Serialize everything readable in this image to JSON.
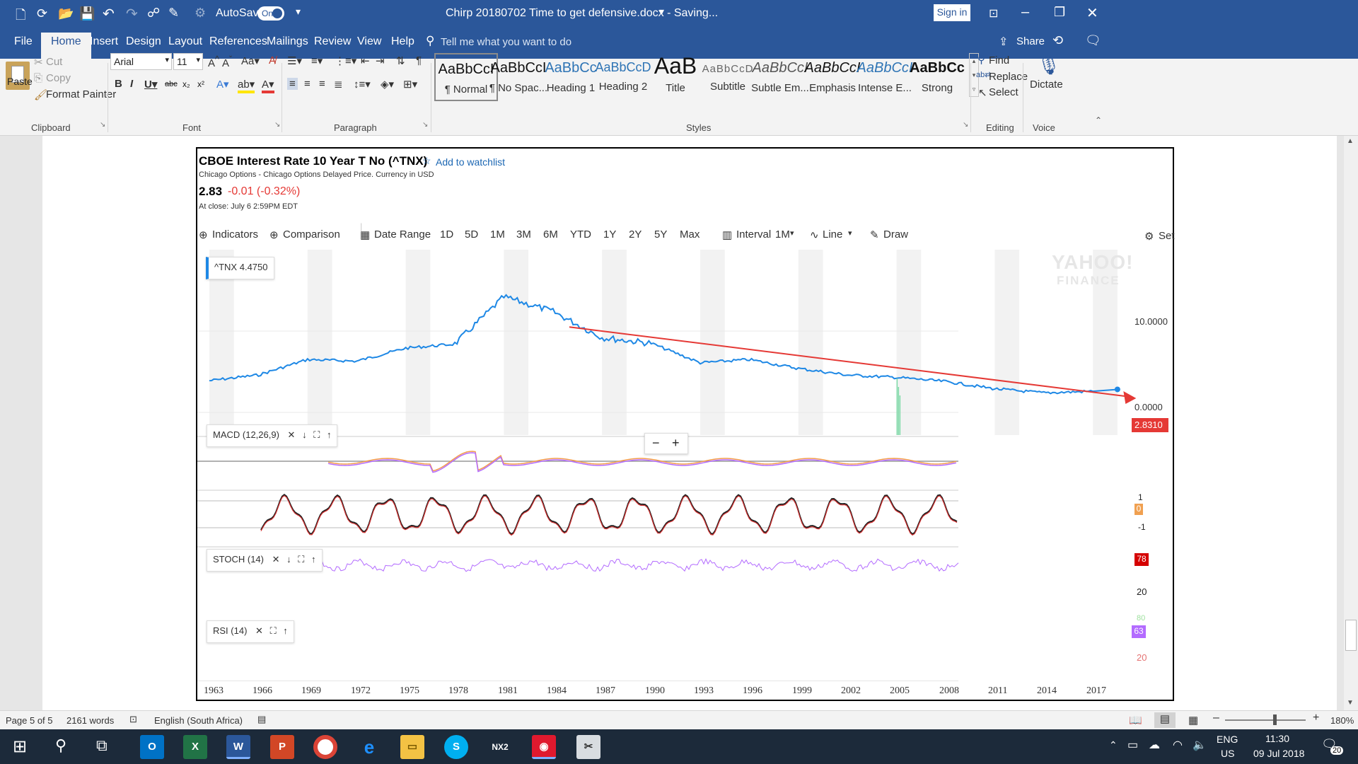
{
  "titlebar": {
    "autosave_label": "AutoSave",
    "autosave_state": "On",
    "doc_title": "Chirp 20180702 Time to get defensive.docx  -  Saving...",
    "sign_in": "Sign in"
  },
  "tabs": [
    "File",
    "Home",
    "Insert",
    "Design",
    "Layout",
    "References",
    "Mailings",
    "Review",
    "View",
    "Help"
  ],
  "tell_me": "Tell me what you want to do",
  "share": "Share",
  "clipboard": {
    "paste": "Paste",
    "cut": "Cut",
    "copy": "Copy",
    "format_painter": "Format Painter",
    "group": "Clipboard"
  },
  "font": {
    "name": "Arial",
    "size": "11",
    "group": "Font"
  },
  "paragraph": {
    "group": "Paragraph"
  },
  "styles": {
    "group": "Styles",
    "items": [
      {
        "sample": "AaBbCcI",
        "name": "¶ Normal"
      },
      {
        "sample": "AaBbCcI",
        "name": "¶ No Spac..."
      },
      {
        "sample": "AaBbCc",
        "name": "Heading 1"
      },
      {
        "sample": "AaBbCcD",
        "name": "Heading 2"
      },
      {
        "sample": "AaB",
        "name": "Title"
      },
      {
        "sample": "AaBbCcD",
        "name": "Subtitle"
      },
      {
        "sample": "AaBbCcI",
        "name": "Subtle Em..."
      },
      {
        "sample": "AaBbCcI",
        "name": "Emphasis"
      },
      {
        "sample": "AaBbCcI",
        "name": "Intense E..."
      },
      {
        "sample": "AaBbCc",
        "name": "Strong"
      }
    ]
  },
  "editing": {
    "find": "Find",
    "replace": "Replace",
    "select": "Select",
    "group": "Editing"
  },
  "voice": {
    "dictate": "Dictate",
    "group": "Voice"
  },
  "quote": {
    "title": "CBOE Interest Rate 10 Year T No (^TNX)",
    "watchlist": "Add to watchlist",
    "source": "Chicago Options - Chicago Options Delayed Price. Currency in USD",
    "price": "2.83",
    "change": "-0.01 (-0.32%)",
    "close_time": "At close: July 6 2:59PM EDT"
  },
  "toolbar": {
    "indicators": "Indicators",
    "comparison": "Comparison",
    "date_range": "Date Range",
    "ranges": [
      "1D",
      "5D",
      "1M",
      "3M",
      "6M",
      "YTD",
      "1Y",
      "2Y",
      "5Y",
      "Max"
    ],
    "interval": "Interval",
    "interval_value": "1M",
    "line": "Line",
    "draw": "Draw",
    "settings": "Set"
  },
  "watermark": {
    "line1": "YAHOO!",
    "line2": "FINANCE"
  },
  "legend": {
    "symbol": "^TNX",
    "value": "4.4750"
  },
  "price_axis": {
    "upper": "10.0000",
    "lower": "0.0000",
    "current": "2.8310"
  },
  "zoom": {
    "minus": "−",
    "plus": "+"
  },
  "macd": {
    "label": "MACD (12,26,9)",
    "top": "1",
    "mid": "0",
    "bottom": "-1"
  },
  "stoch": {
    "label": "STOCH (14)",
    "current": "78",
    "lower": "20"
  },
  "rsi": {
    "label": "RSI (14)",
    "upper": "80",
    "current": "63",
    "lower": "20"
  },
  "chart_data": {
    "type": "line",
    "title": "CBOE Interest Rate 10 Year T No (^TNX)",
    "xlabel": "",
    "ylabel": "",
    "x": [
      "1963",
      "1966",
      "1969",
      "1972",
      "1975",
      "1978",
      "1981",
      "1984",
      "1987",
      "1990",
      "1993",
      "1996",
      "1999",
      "2002",
      "2005",
      "2008",
      "2011",
      "2014",
      "2017"
    ],
    "series": [
      {
        "name": "^TNX",
        "color": "#1e88e5",
        "values": [
          3.9,
          4.6,
          6.5,
          6.3,
          7.9,
          8.4,
          14.2,
          12.4,
          9.2,
          8.5,
          6.1,
          6.5,
          5.4,
          4.6,
          4.3,
          3.8,
          2.9,
          2.4,
          2.6
        ]
      }
    ],
    "y_ticks": [
      "0.0000",
      "10.0000"
    ],
    "trendline": {
      "color": "#e53935",
      "from": [
        "1985",
        10.5
      ],
      "to": [
        "2018",
        2.0
      ]
    },
    "grid": true
  },
  "status": {
    "page": "Page 5 of 5",
    "words": "2161 words",
    "language": "English (South Africa)",
    "zoom": "180%"
  },
  "taskbar": {
    "lang1": "ENG",
    "lang2": "US",
    "time": "11:30",
    "date": "09 Jul 2018",
    "notifications": "20"
  }
}
